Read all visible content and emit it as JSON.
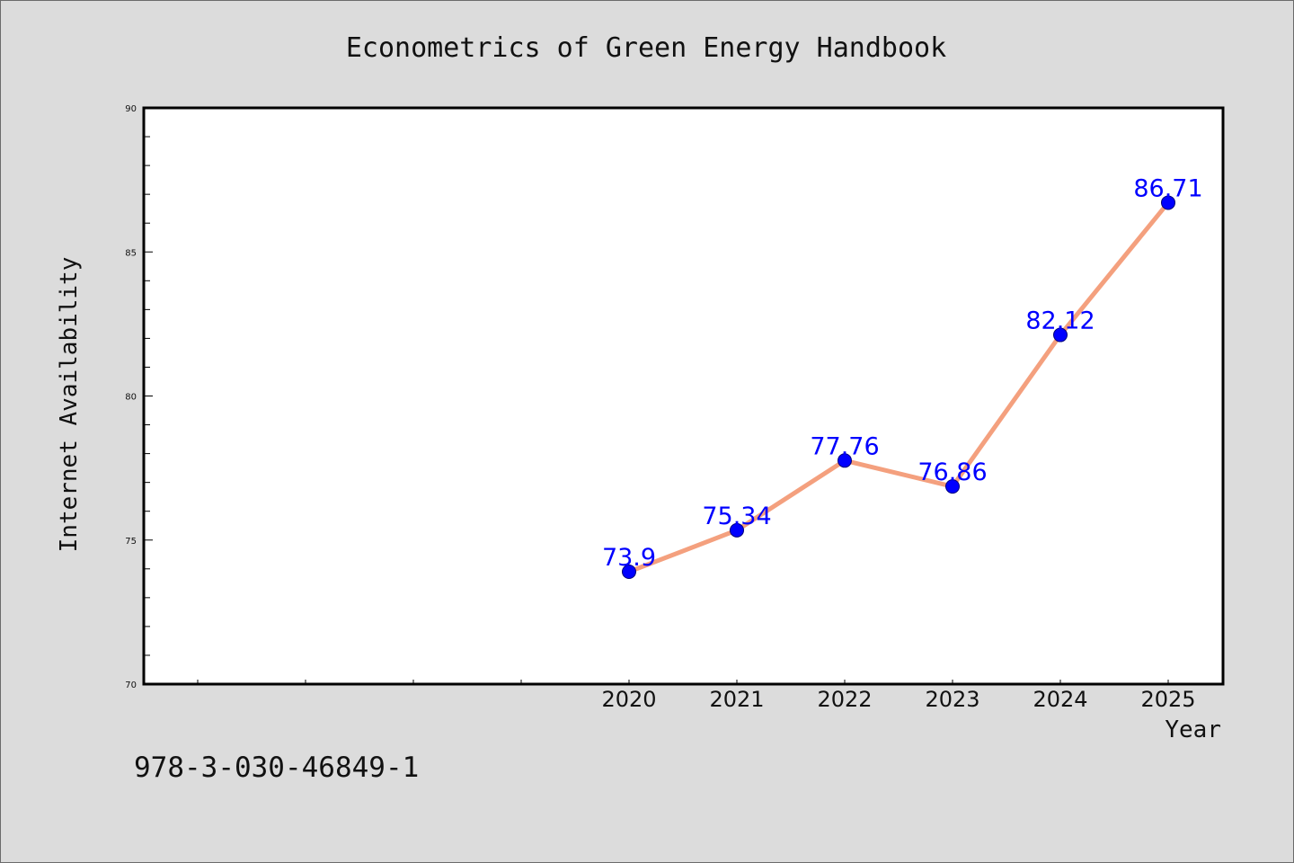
{
  "chart_data": {
    "type": "line",
    "title": "Econometrics of Green Energy Handbook",
    "xlabel": "Year",
    "ylabel": "Internet Availability",
    "categories": [
      "2020",
      "2021",
      "2022",
      "2023",
      "2024",
      "2025"
    ],
    "series": [
      {
        "values": [
          73.9,
          75.34,
          77.76,
          76.86,
          82.12,
          86.71
        ],
        "labels": [
          "73.9",
          "75.34",
          "77.76",
          "76.86",
          "82.12",
          "86.71"
        ]
      }
    ],
    "ylim": [
      70,
      90
    ],
    "y_ticks": [
      "70",
      "75",
      "80",
      "85",
      "90"
    ],
    "grid": false,
    "legend": "none",
    "line_color": "#f4a07e",
    "marker_color": "#0000ff",
    "label_color": "#0000ff"
  },
  "footer": {
    "isbn": "978-3-030-46849-1"
  },
  "colors": {
    "background": "#dcdcdc",
    "plot_background": "#ffffff",
    "axis": "#000000"
  }
}
